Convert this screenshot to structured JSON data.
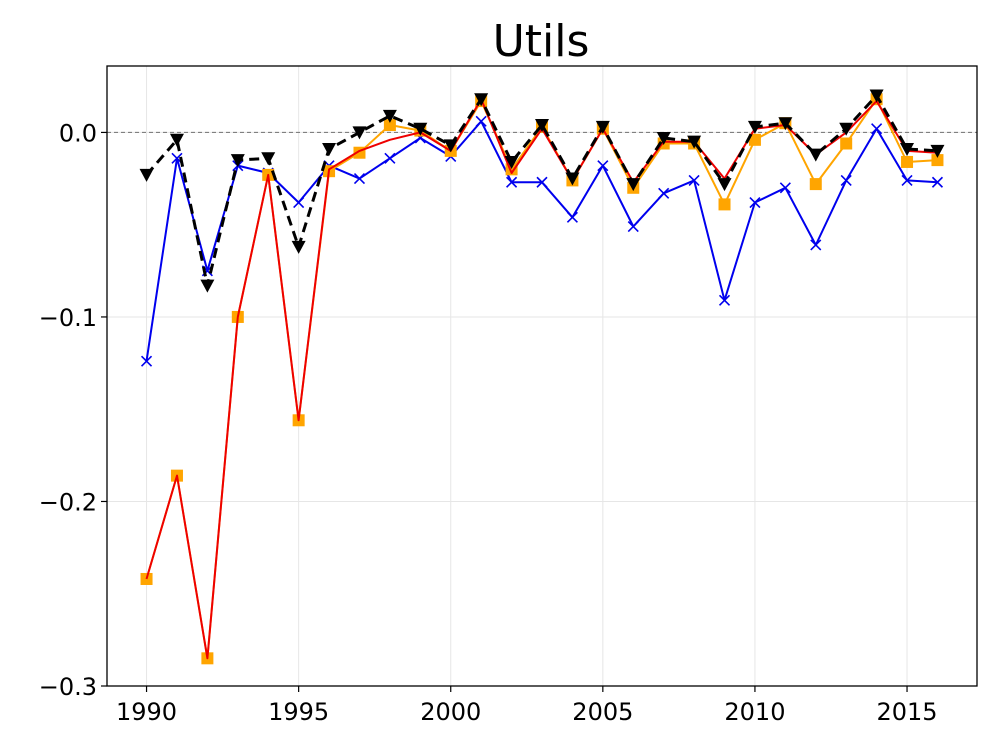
{
  "chart_data": {
    "type": "line",
    "title": "Utils",
    "xlabel": "",
    "ylabel": "",
    "xlim": [
      1988.7,
      2017.3
    ],
    "ylim": [
      -0.3,
      0.036
    ],
    "xticks": [
      1990,
      1995,
      2000,
      2005,
      2010,
      2015
    ],
    "xtick_labels": [
      "1990",
      "1995",
      "2000",
      "2005",
      "2010",
      "2015"
    ],
    "yticks": [
      0.0,
      -0.1,
      -0.2,
      -0.3
    ],
    "ytick_labels": [
      "0.0",
      "−0.1",
      "−0.2",
      "−0.3"
    ],
    "grid": true,
    "reference_line": 0.0,
    "x": [
      1990,
      1991,
      1992,
      1993,
      1994,
      1995,
      1996,
      1997,
      1998,
      1999,
      2000,
      2001,
      2002,
      2003,
      2004,
      2005,
      2006,
      2007,
      2008,
      2009,
      2010,
      2011,
      2012,
      2013,
      2014,
      2015,
      2016
    ],
    "series": [
      {
        "color": "#0000ee",
        "marker": "x",
        "dash": "solid",
        "values": [
          -0.124,
          -0.014,
          -0.075,
          -0.018,
          -0.022,
          -0.038,
          -0.018,
          -0.025,
          -0.014,
          -0.003,
          -0.013,
          0.006,
          -0.027,
          -0.027,
          -0.046,
          -0.018,
          -0.051,
          -0.033,
          -0.026,
          -0.091,
          -0.038,
          -0.03,
          -0.061,
          -0.026,
          0.002,
          -0.026,
          -0.027
        ]
      },
      {
        "color": "#ffa500",
        "marker": "square",
        "dash": "solid",
        "values": [
          -0.242,
          -0.186,
          -0.285,
          -0.1,
          -0.023,
          -0.156,
          -0.021,
          -0.011,
          0.004,
          0.001,
          -0.01,
          0.017,
          -0.02,
          0.003,
          -0.026,
          0.002,
          -0.03,
          -0.006,
          -0.006,
          -0.039,
          -0.004,
          0.005,
          -0.028,
          -0.006,
          0.018,
          -0.016,
          -0.015
        ]
      },
      {
        "color": "#ee0000",
        "marker": "none",
        "dash": "solid",
        "values": [
          -0.242,
          -0.186,
          -0.285,
          -0.1,
          -0.023,
          -0.156,
          -0.02,
          -0.01,
          -0.004,
          0.0,
          -0.01,
          0.018,
          -0.022,
          0.002,
          -0.026,
          0.002,
          -0.027,
          -0.005,
          -0.005,
          -0.025,
          0.002,
          0.004,
          -0.012,
          0.0,
          0.017,
          -0.01,
          -0.011
        ]
      },
      {
        "color": "#000000",
        "marker": "triangle-down",
        "dash": "dashed",
        "values": [
          -0.023,
          -0.004,
          -0.083,
          -0.015,
          -0.014,
          -0.062,
          -0.009,
          0.0,
          0.009,
          0.002,
          -0.007,
          0.018,
          -0.016,
          0.004,
          -0.025,
          0.003,
          -0.028,
          -0.003,
          -0.005,
          -0.028,
          0.003,
          0.005,
          -0.012,
          0.002,
          0.02,
          -0.009,
          -0.01
        ]
      }
    ]
  }
}
